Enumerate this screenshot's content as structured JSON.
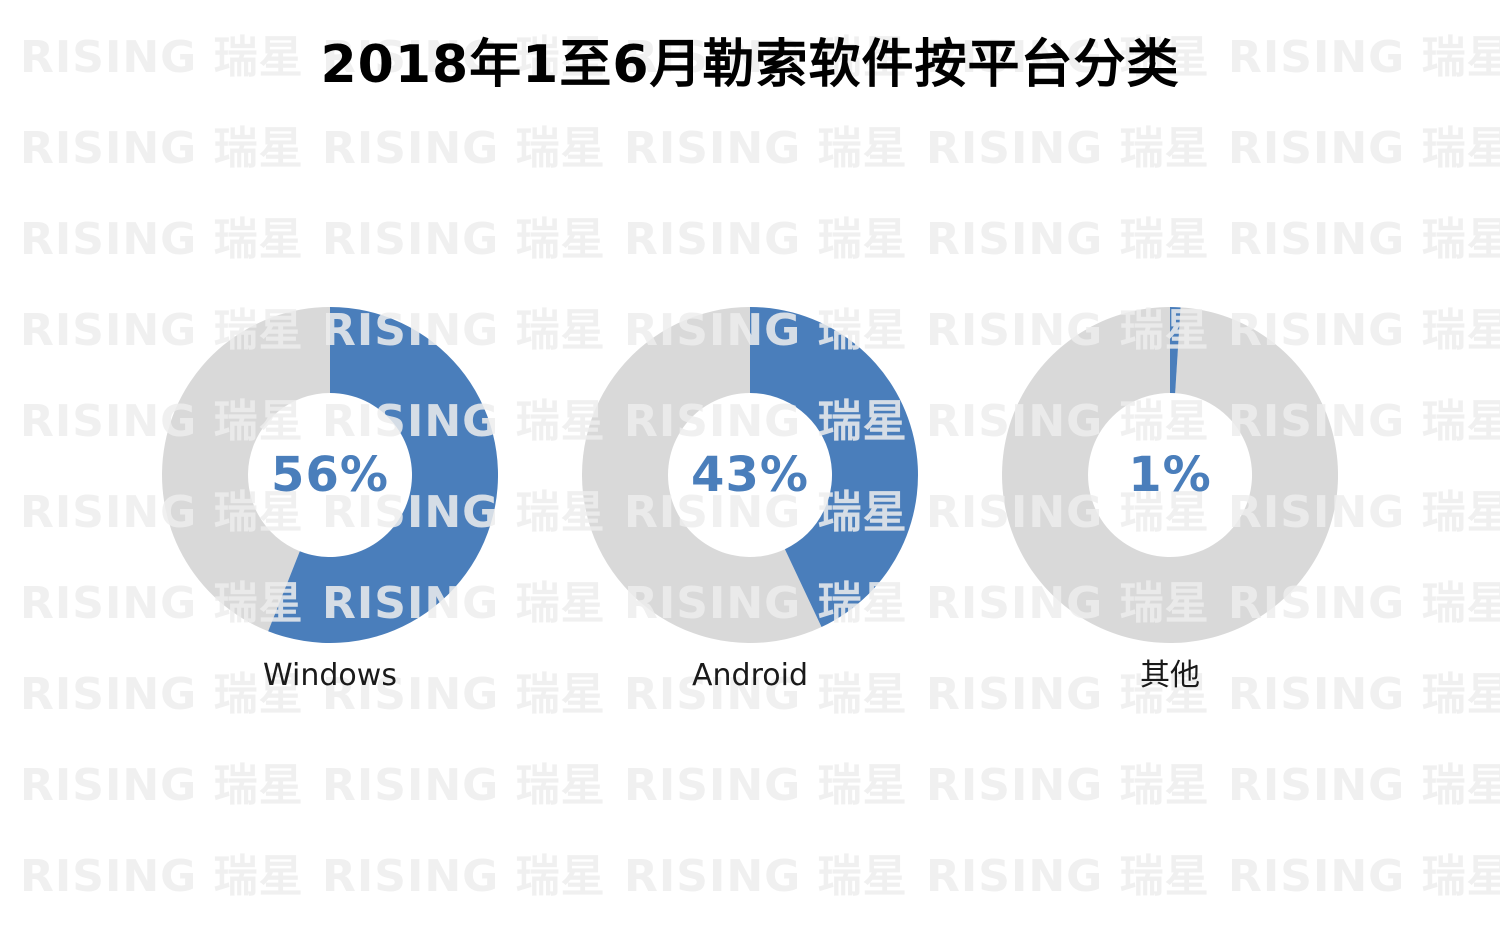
{
  "title": "2018年1至6月勒索软件按平台分类",
  "watermark": {
    "text": "RISING 瑞星",
    "color": "#eeeeee"
  },
  "chart_data": {
    "type": "pie",
    "variant": "donut-small-multiples",
    "title": "2018年1至6月勒索软件按平台分类",
    "unit": "%",
    "categories": [
      "Windows",
      "Android",
      "其他"
    ],
    "values": [
      56,
      43,
      1
    ],
    "series": [
      {
        "category": "Windows",
        "value": 56,
        "label": "56%"
      },
      {
        "category": "Android",
        "value": 43,
        "label": "43%"
      },
      {
        "category": "其他",
        "value": 1,
        "label": "1%"
      }
    ],
    "start_angle_deg": 0,
    "direction": "clockwise",
    "donut_hole_ratio": 0.49,
    "legend": "none",
    "colors": {
      "value_slice": "#4a7ebb",
      "remainder_slice": "#d9d9d9",
      "value_label": "#4a7ebb",
      "category_label": "#1a1a1a",
      "title": "#000000",
      "background": "#ffffff"
    }
  }
}
